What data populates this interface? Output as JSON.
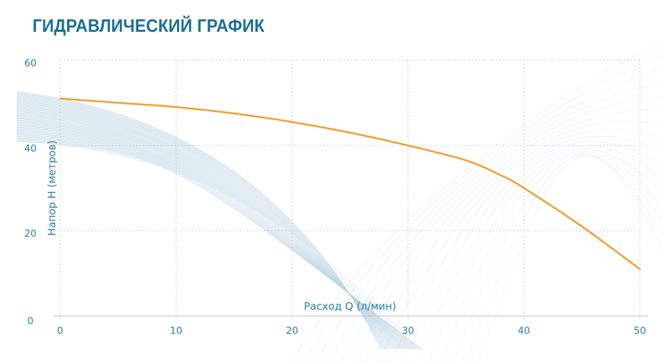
{
  "header": {
    "title": "ГИДРАВЛИЧЕСКИЙ ГРАФИК"
  },
  "colors": {
    "curve": "#f0a030",
    "text": "#2a7fa8",
    "title": "#1a6f96",
    "grid": "#c9ccd0"
  },
  "chart_data": {
    "type": "line",
    "title": "ГИДРАВЛИЧЕСКИЙ ГРАФИК",
    "xlabel": "Расход Q (л/мин)",
    "ylabel": "Напор Н (метров)",
    "xlim": [
      0,
      50
    ],
    "ylim": [
      0,
      60
    ],
    "x_ticks": [
      "0",
      "10",
      "20",
      "30",
      "40",
      "50"
    ],
    "y_ticks": [
      "0",
      "20",
      "40",
      "60"
    ],
    "grid": true,
    "series": [
      {
        "x": [
          0,
          5,
          10,
          15,
          20,
          25,
          30,
          35,
          38,
          40,
          45,
          50
        ],
        "y": [
          51,
          50,
          49,
          47.5,
          45.5,
          43,
          40,
          36.5,
          33,
          30,
          21,
          11
        ]
      }
    ]
  }
}
